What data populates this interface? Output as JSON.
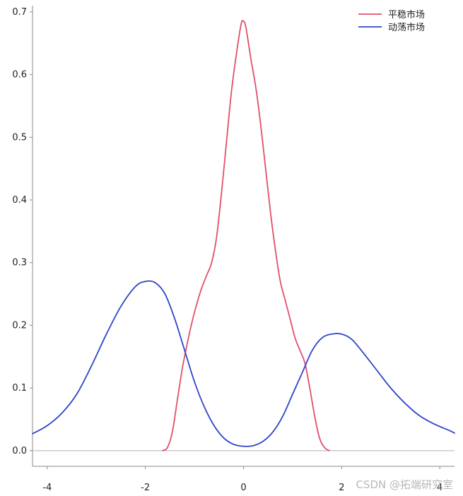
{
  "chart_data": {
    "type": "line",
    "title": "",
    "xlabel": "",
    "ylabel": "",
    "xlim": [
      -4.3,
      4.3
    ],
    "ylim": [
      -0.025,
      0.71
    ],
    "x_ticks": [
      -4,
      -2,
      0,
      2,
      4
    ],
    "x_tick_labels": [
      "-4",
      "-2",
      "0",
      "2",
      "4"
    ],
    "y_ticks": [
      0.0,
      0.1,
      0.2,
      0.3,
      0.4,
      0.5,
      0.6,
      0.7
    ],
    "y_tick_labels": [
      "0.0",
      "0.1",
      "0.2",
      "0.3",
      "0.4",
      "0.5",
      "0.6",
      "0.7"
    ],
    "grid": false,
    "baseline_y": 0,
    "legend_position": "top-right",
    "series": [
      {
        "name": "平稳市场",
        "color": "#e0506a",
        "points": [
          [
            -1.65,
            0.0
          ],
          [
            -1.55,
            0.005
          ],
          [
            -1.45,
            0.03
          ],
          [
            -1.35,
            0.08
          ],
          [
            -1.25,
            0.13
          ],
          [
            -1.15,
            0.17
          ],
          [
            -1.05,
            0.205
          ],
          [
            -0.95,
            0.235
          ],
          [
            -0.85,
            0.26
          ],
          [
            -0.75,
            0.28
          ],
          [
            -0.65,
            0.3
          ],
          [
            -0.55,
            0.34
          ],
          [
            -0.45,
            0.41
          ],
          [
            -0.35,
            0.49
          ],
          [
            -0.25,
            0.57
          ],
          [
            -0.15,
            0.63
          ],
          [
            -0.05,
            0.68
          ],
          [
            0.0,
            0.685
          ],
          [
            0.05,
            0.675
          ],
          [
            0.15,
            0.625
          ],
          [
            0.25,
            0.58
          ],
          [
            0.35,
            0.52
          ],
          [
            0.45,
            0.45
          ],
          [
            0.55,
            0.38
          ],
          [
            0.65,
            0.32
          ],
          [
            0.75,
            0.27
          ],
          [
            0.85,
            0.24
          ],
          [
            0.95,
            0.21
          ],
          [
            1.05,
            0.18
          ],
          [
            1.15,
            0.16
          ],
          [
            1.25,
            0.14
          ],
          [
            1.35,
            0.1
          ],
          [
            1.45,
            0.055
          ],
          [
            1.55,
            0.02
          ],
          [
            1.65,
            0.005
          ],
          [
            1.75,
            0.0
          ]
        ]
      },
      {
        "name": "动荡市场",
        "color": "#2f44c8",
        "points": [
          [
            -4.3,
            0.027
          ],
          [
            -4.0,
            0.04
          ],
          [
            -3.7,
            0.06
          ],
          [
            -3.4,
            0.09
          ],
          [
            -3.1,
            0.135
          ],
          [
            -2.8,
            0.185
          ],
          [
            -2.5,
            0.23
          ],
          [
            -2.2,
            0.262
          ],
          [
            -2.0,
            0.27
          ],
          [
            -1.8,
            0.268
          ],
          [
            -1.6,
            0.25
          ],
          [
            -1.4,
            0.21
          ],
          [
            -1.2,
            0.16
          ],
          [
            -1.0,
            0.11
          ],
          [
            -0.8,
            0.07
          ],
          [
            -0.6,
            0.04
          ],
          [
            -0.4,
            0.02
          ],
          [
            -0.2,
            0.01
          ],
          [
            0.0,
            0.007
          ],
          [
            0.2,
            0.008
          ],
          [
            0.4,
            0.015
          ],
          [
            0.6,
            0.03
          ],
          [
            0.8,
            0.055
          ],
          [
            1.0,
            0.09
          ],
          [
            1.2,
            0.125
          ],
          [
            1.4,
            0.16
          ],
          [
            1.6,
            0.18
          ],
          [
            1.8,
            0.186
          ],
          [
            2.0,
            0.186
          ],
          [
            2.2,
            0.178
          ],
          [
            2.4,
            0.16
          ],
          [
            2.7,
            0.13
          ],
          [
            3.0,
            0.1
          ],
          [
            3.3,
            0.075
          ],
          [
            3.6,
            0.055
          ],
          [
            3.9,
            0.042
          ],
          [
            4.2,
            0.032
          ],
          [
            4.3,
            0.028
          ]
        ]
      }
    ]
  },
  "watermark": "CSDN @拓端研究室"
}
